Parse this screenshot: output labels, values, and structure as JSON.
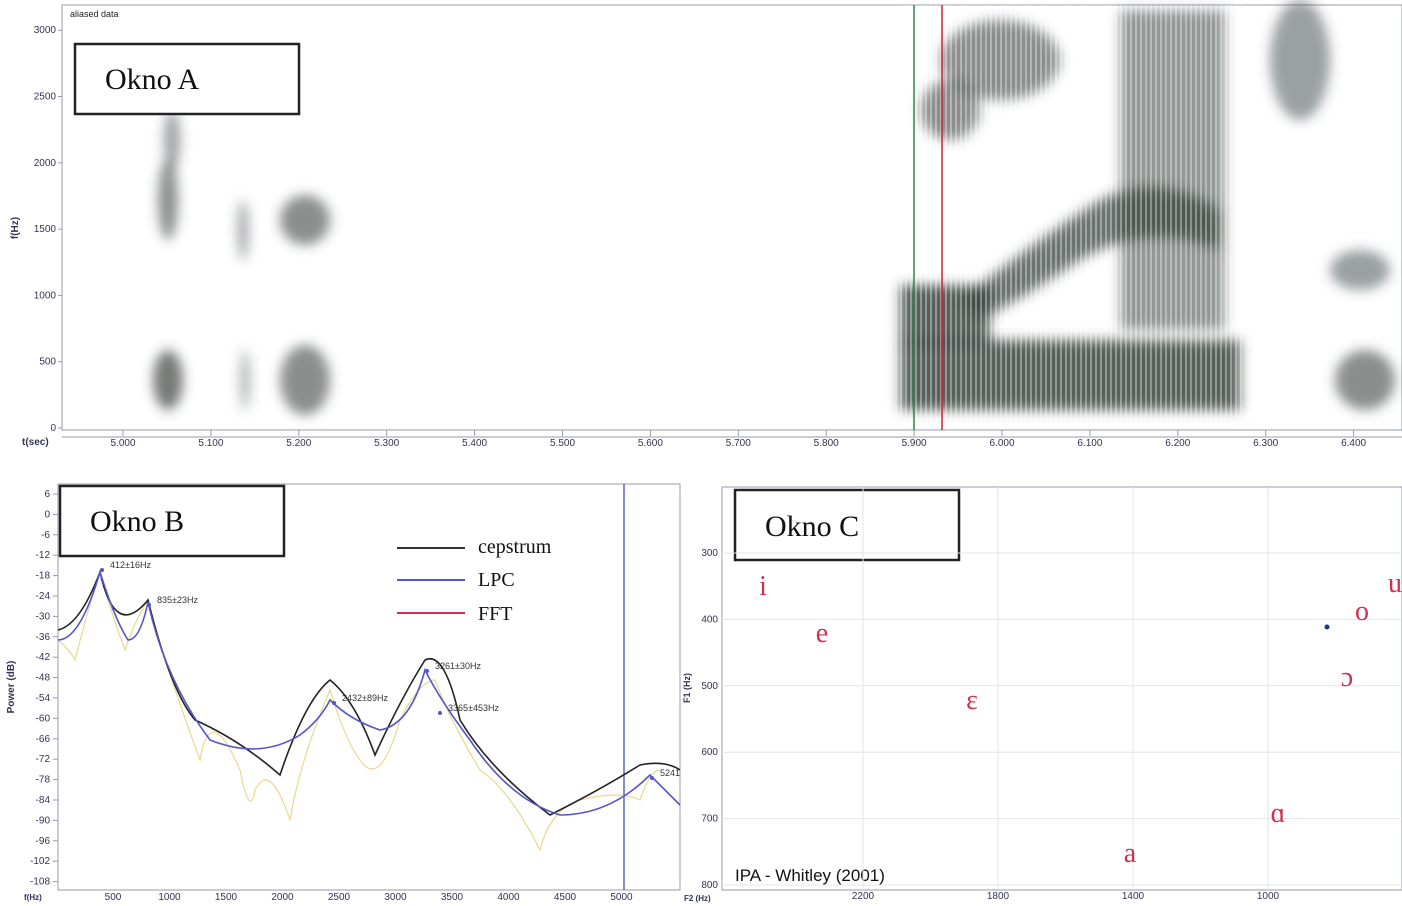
{
  "panel_a": {
    "title": "Okno A",
    "caption": "aliased data",
    "y_axis_label": "f(Hz)",
    "x_axis_label": "t(sec)",
    "yticks": [
      "0",
      "500",
      "1000",
      "1500",
      "2000",
      "2500",
      "3000"
    ],
    "xticks": [
      "5.000",
      "5.100",
      "5.200",
      "5.300",
      "5.400",
      "5.500",
      "5.600",
      "5.700",
      "5.800",
      "5.900",
      "6.000",
      "6.100",
      "6.200",
      "6.300",
      "6.400"
    ]
  },
  "panel_b": {
    "title": "Okno B",
    "y_axis_label": "Power (dB)",
    "x_axis_label": "f(Hz)",
    "yticks": [
      "6",
      "0",
      "-6",
      "-12",
      "-18",
      "-24",
      "-30",
      "-36",
      "-42",
      "-48",
      "-54",
      "-60",
      "-66",
      "-72",
      "-78",
      "-84",
      "-90",
      "-96",
      "-102",
      "-108"
    ],
    "xticks": [
      "500",
      "1000",
      "1500",
      "2000",
      "2500",
      "3000",
      "3500",
      "4000",
      "4500",
      "5000"
    ],
    "legend": [
      "cepstrum",
      "LPC",
      "FFT"
    ],
    "peak_labels": [
      "412±16Hz",
      "835±23Hz",
      "2432±89Hz",
      "3261±30Hz",
      "3365±453Hz",
      "5241"
    ]
  },
  "panel_c": {
    "title": "Okno C",
    "y_axis_label": "F1 (Hz)",
    "x_axis_label": "F2 (Hz)",
    "yticks": [
      "300",
      "400",
      "500",
      "600",
      "700",
      "800"
    ],
    "xticks": [
      "2200",
      "1800",
      "1400",
      "1000"
    ],
    "vowels": [
      "i",
      "e",
      "ɛ",
      "a",
      "ɑ",
      "ɔ",
      "o",
      "u"
    ],
    "credit": "IPA - Whitley (2001)"
  }
}
